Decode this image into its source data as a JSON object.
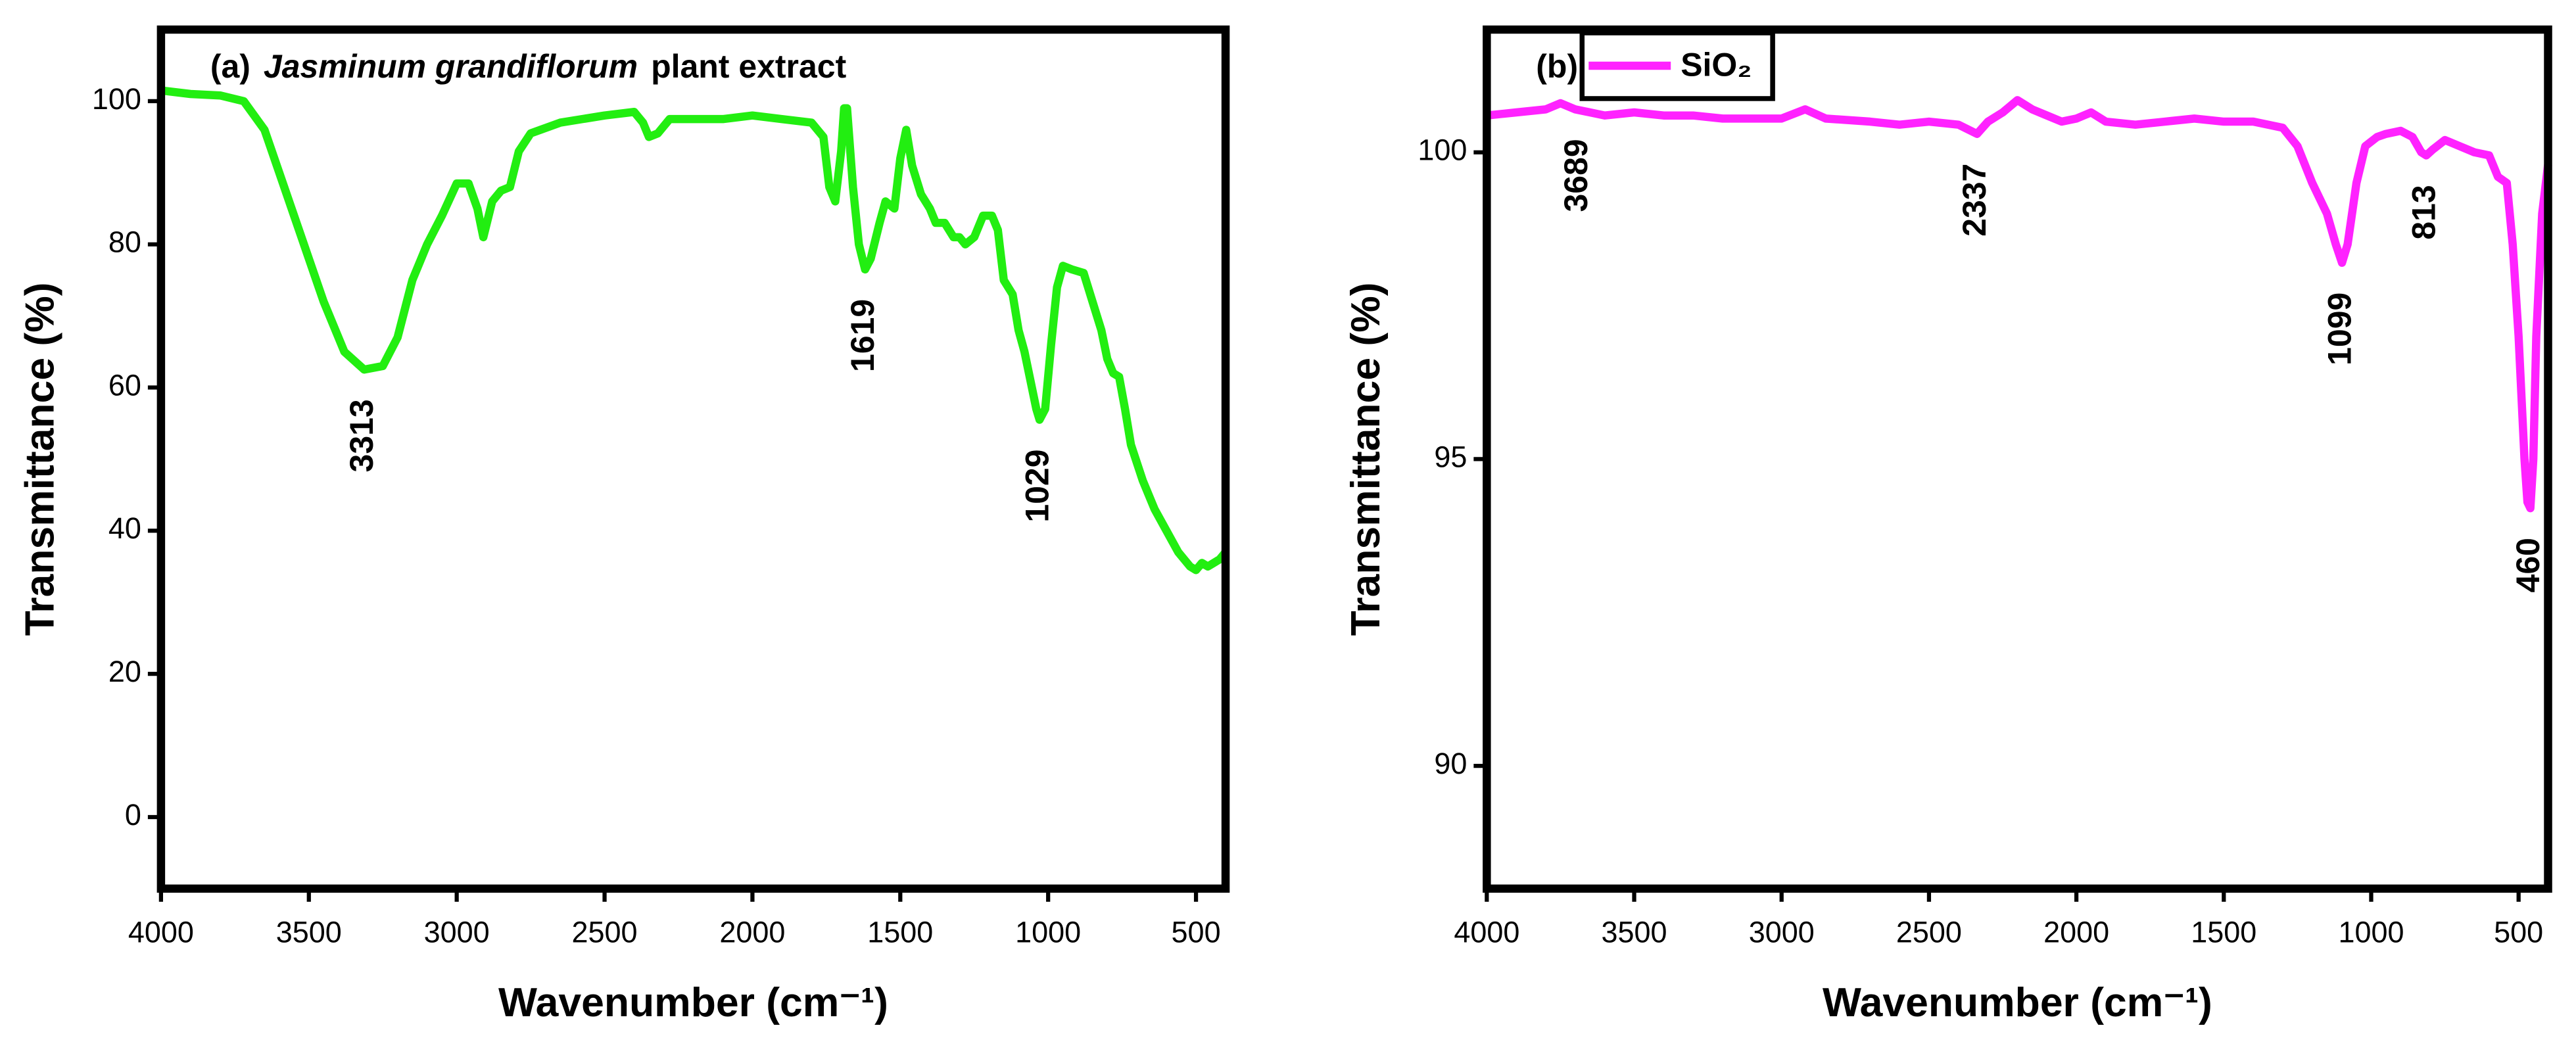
{
  "chart_data": [
    {
      "type": "line",
      "panel_label": "(a)",
      "title_italic": "Jasminum grandiflorum",
      "title": "plant extract",
      "x_label": "Wavenumber (cm⁻¹)",
      "y_label": "Transmittance (%)",
      "xlim": [
        4000,
        400
      ],
      "ylim": [
        -10,
        110
      ],
      "xticks": [
        4000,
        3500,
        3000,
        2500,
        2000,
        1500,
        1000,
        500
      ],
      "yticks": [
        0,
        20,
        40,
        60,
        80,
        100
      ],
      "annotations": [
        "3313",
        "1619",
        "1029"
      ],
      "x": [
        4000,
        3900,
        3800,
        3720,
        3650,
        3550,
        3450,
        3380,
        3313,
        3250,
        3200,
        3150,
        3100,
        3050,
        3000,
        2960,
        2930,
        2910,
        2880,
        2850,
        2820,
        2790,
        2750,
        2650,
        2500,
        2400,
        2370,
        2350,
        2320,
        2280,
        2200,
        2100,
        2000,
        1900,
        1800,
        1760,
        1740,
        1720,
        1700,
        1690,
        1680,
        1660,
        1640,
        1619,
        1600,
        1570,
        1550,
        1520,
        1500,
        1480,
        1460,
        1430,
        1400,
        1380,
        1350,
        1320,
        1300,
        1280,
        1250,
        1220,
        1190,
        1170,
        1150,
        1120,
        1100,
        1080,
        1060,
        1040,
        1029,
        1010,
        990,
        970,
        950,
        920,
        880,
        850,
        820,
        800,
        780,
        760,
        740,
        720,
        680,
        640,
        600,
        560,
        520,
        500,
        480,
        460,
        440,
        420,
        400
      ],
      "series": [
        {
          "name": "Jasminum grandiflorum",
          "color": "#22ee11",
          "values": [
            101.5,
            101,
            100.8,
            100,
            96,
            84,
            72,
            65,
            62.5,
            63,
            67,
            75,
            80,
            84,
            88.5,
            88.5,
            85,
            81,
            86,
            87.5,
            88,
            93,
            95.5,
            97,
            98,
            98.5,
            97,
            95,
            95.5,
            97.5,
            97.5,
            97.5,
            98,
            97.5,
            97,
            95,
            88,
            86,
            93,
            99,
            99,
            88,
            80,
            76.5,
            78,
            83,
            86,
            85,
            92,
            96,
            91,
            87,
            85,
            83,
            83,
            81,
            81,
            80,
            81,
            84,
            84,
            82,
            75,
            73,
            68,
            65,
            61,
            57,
            55.5,
            57,
            66,
            74,
            77,
            76.5,
            76,
            72,
            68,
            64,
            62,
            61.5,
            57,
            52,
            47,
            43,
            40,
            37,
            35,
            34.5,
            35.5,
            35,
            35.5,
            36,
            37
          ]
        }
      ]
    },
    {
      "type": "line",
      "panel_label": "(b)",
      "x_label": "Wavenumber (cm⁻¹)",
      "y_label": "Transmittance (%)",
      "xlim": [
        4000,
        400
      ],
      "ylim": [
        88,
        102
      ],
      "xticks": [
        4000,
        3500,
        3000,
        2500,
        2000,
        1500,
        1000,
        500
      ],
      "yticks": [
        90,
        95,
        100
      ],
      "annotations": [
        "3689",
        "2337",
        "1099",
        "813",
        "460"
      ],
      "x": [
        4000,
        3900,
        3800,
        3750,
        3700,
        3600,
        3500,
        3400,
        3300,
        3200,
        3100,
        3000,
        2920,
        2850,
        2700,
        2600,
        2500,
        2400,
        2337,
        2300,
        2250,
        2200,
        2150,
        2100,
        2050,
        2000,
        1950,
        1900,
        1800,
        1700,
        1600,
        1500,
        1400,
        1300,
        1250,
        1200,
        1150,
        1120,
        1099,
        1080,
        1050,
        1020,
        980,
        950,
        900,
        860,
        830,
        813,
        790,
        750,
        700,
        650,
        600,
        570,
        540,
        520,
        500,
        480,
        470,
        460,
        450,
        440,
        420,
        400
      ],
      "series": [
        {
          "name": "SiO₂",
          "color": "#ff22ff",
          "values": [
            100.6,
            100.65,
            100.7,
            100.8,
            100.7,
            100.6,
            100.65,
            100.6,
            100.6,
            100.55,
            100.55,
            100.55,
            100.7,
            100.55,
            100.5,
            100.45,
            100.5,
            100.45,
            100.3,
            100.5,
            100.65,
            100.85,
            100.7,
            100.6,
            100.5,
            100.55,
            100.65,
            100.5,
            100.45,
            100.5,
            100.55,
            100.5,
            100.5,
            100.4,
            100.1,
            99.5,
            99,
            98.5,
            98.2,
            98.5,
            99.5,
            100.1,
            100.25,
            100.3,
            100.35,
            100.25,
            100,
            99.95,
            100.05,
            100.2,
            100.1,
            100,
            99.95,
            99.6,
            99.5,
            98.5,
            97,
            95,
            94.3,
            94.2,
            95,
            97,
            99,
            99.8
          ]
        }
      ]
    }
  ]
}
